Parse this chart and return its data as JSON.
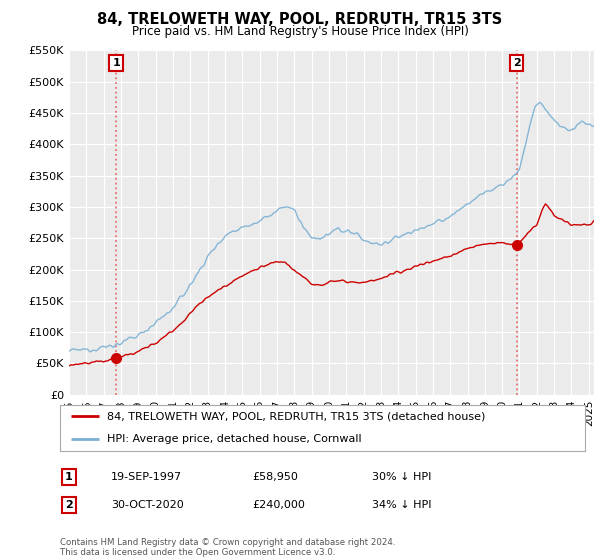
{
  "title": "84, TRELOWETH WAY, POOL, REDRUTH, TR15 3TS",
  "subtitle": "Price paid vs. HM Land Registry's House Price Index (HPI)",
  "ylim": [
    0,
    550000
  ],
  "yticks": [
    0,
    50000,
    100000,
    150000,
    200000,
    250000,
    300000,
    350000,
    400000,
    450000,
    500000,
    550000
  ],
  "ytick_labels": [
    "£0",
    "£50K",
    "£100K",
    "£150K",
    "£200K",
    "£250K",
    "£300K",
    "£350K",
    "£400K",
    "£450K",
    "£500K",
    "£550K"
  ],
  "purchase1": {
    "date_num": 1997.72,
    "price": 58950,
    "label": "1",
    "date_str": "19-SEP-1997",
    "price_str": "£58,950",
    "note": "30% ↓ HPI"
  },
  "purchase2": {
    "date_num": 2020.83,
    "price": 240000,
    "label": "2",
    "date_str": "30-OCT-2020",
    "price_str": "£240,000",
    "note": "34% ↓ HPI"
  },
  "legend_line1": "84, TRELOWETH WAY, POOL, REDRUTH, TR15 3TS (detached house)",
  "legend_line2": "HPI: Average price, detached house, Cornwall",
  "footer": "Contains HM Land Registry data © Crown copyright and database right 2024.\nThis data is licensed under the Open Government Licence v3.0.",
  "line_color_red": "#cc0000",
  "line_color_blue": "#7ab0d4",
  "dashed_color": "#e87070",
  "marker_color": "#cc0000",
  "background_plot": "#ebebeb",
  "background_fig": "#ffffff",
  "grid_color": "#ffffff",
  "xlim_start": 1995,
  "xlim_end": 2025.3
}
